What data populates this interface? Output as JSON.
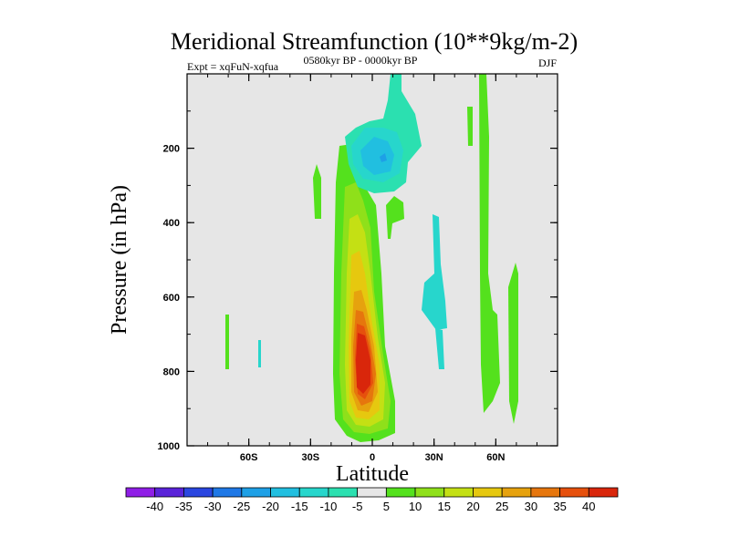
{
  "chart_data": {
    "type": "contour",
    "title": "Meridional Streamfunction (10**9kg/m-2)",
    "left_string": "Expt = xqFuN-xqfua",
    "center_string": "0580kyr BP - 0000kyr BP",
    "right_string": "DJF",
    "xlabel": "Latitude",
    "ylabel": "Pressure (in hPa)",
    "xlim": [
      -90,
      90
    ],
    "ylim": [
      0,
      1000
    ],
    "y_inverted": true,
    "x_ticks": [
      {
        "value": -60,
        "label": "60S"
      },
      {
        "value": -30,
        "label": "30S"
      },
      {
        "value": 0,
        "label": "0"
      },
      {
        "value": 30,
        "label": "30N"
      },
      {
        "value": 60,
        "label": "60N"
      }
    ],
    "y_ticks": [
      {
        "value": 200,
        "label": "200"
      },
      {
        "value": 400,
        "label": "400"
      },
      {
        "value": 600,
        "label": "600"
      },
      {
        "value": 800,
        "label": "800"
      },
      {
        "value": 1000,
        "label": "1000"
      }
    ],
    "contour_levels": [
      -40,
      -35,
      -30,
      -25,
      -20,
      -15,
      -10,
      -5,
      5,
      10,
      15,
      20,
      25,
      30,
      35,
      40
    ],
    "colorbar_labels": [
      "-40",
      "-35",
      "-30",
      "-25",
      "-20",
      "-15",
      "-10",
      "-5",
      "5",
      "10",
      "15",
      "20",
      "25",
      "30",
      "35",
      "40"
    ],
    "colorbar_colors": [
      "#8f1ee6",
      "#5a23d9",
      "#2a46e0",
      "#1f78e6",
      "#1ea0e6",
      "#21bfe0",
      "#27d6cc",
      "#2be0b0",
      "#e6e6e6",
      "#54e11d",
      "#8fe01a",
      "#c4e014",
      "#e6c80f",
      "#e6a20e",
      "#e6760d",
      "#e6500d",
      "#d9260b"
    ],
    "background_color": "#e6e6e6",
    "features": [
      {
        "name": "positive-cell",
        "lat_center": -5,
        "p_center": 780,
        "peak": 40
      },
      {
        "name": "negative-cell",
        "lat_center": 6,
        "p_center": 220,
        "min": -20
      }
    ]
  }
}
